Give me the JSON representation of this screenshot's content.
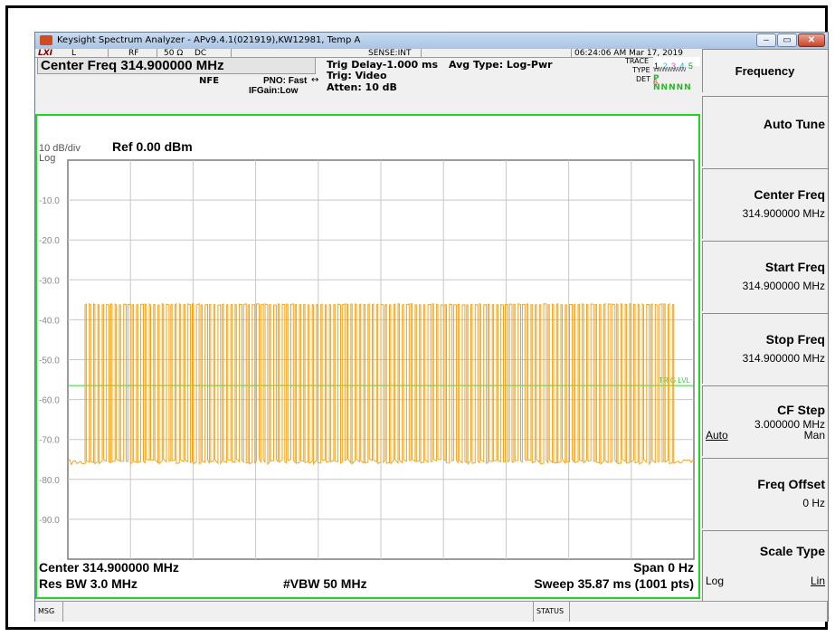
{
  "window": {
    "title": "Keysight Spectrum Analyzer - APv9.4.1(021919),KW12981, Temp A",
    "minimize": "–",
    "restore": "▭",
    "close": "✕"
  },
  "header": {
    "mode_icon": "LXI",
    "input_l": "L",
    "rf": "RF",
    "impedance": "50 Ω",
    "coupling": "DC",
    "sense": "SENSE:INT",
    "datetime": "06:24:06 AM Mar 17, 2019",
    "center_freq": "Center Freq 314.900000 MHz",
    "nfe": "NFE",
    "pno": "PNO: Fast",
    "ifgain": "IFGain:Low",
    "trig_delay": "Trig Delay-1.000 ms",
    "trig": "Trig: Video",
    "atten": "Atten: 10 dB",
    "avg_type": "Avg Type: Log-Pwr",
    "trace_label": "TRACE",
    "trace_nums": [
      "1",
      "2",
      "3",
      "4",
      "5",
      "6"
    ],
    "trace_colors": [
      "#e8a000",
      "#27c1e6",
      "#e040e0",
      "#22a0d0",
      "#2a8c2a",
      "#cc2222"
    ],
    "type_label": "TYPE",
    "type_value": "WWWWWW",
    "det_label": "DET",
    "det_value": "P NNNNN"
  },
  "graph": {
    "scale": "10 dB/div",
    "ref": "Ref 0.00 dBm",
    "log": "Log",
    "y_ticks": [
      "-10.0",
      "-20.0",
      "-30.0",
      "-40.0",
      "-50.0",
      "-60.0",
      "-70.0",
      "-80.0",
      "-90.0"
    ],
    "trig_lvl": "TRIG LVL",
    "center": "Center 314.900000 MHz",
    "span": "Span 0 Hz",
    "rbw": "Res BW 3.0 MHz",
    "vbw": "#VBW 50 MHz",
    "sweep": "Sweep  35.87 ms (1001 pts)",
    "trace_color": "#f2a51a",
    "trig_color": "#33d433"
  },
  "softkeys": {
    "menu_title": "Frequency",
    "auto_tune": "Auto Tune",
    "center_freq_label": "Center Freq",
    "center_freq_value": "314.900000 MHz",
    "start_freq_label": "Start Freq",
    "start_freq_value": "314.900000 MHz",
    "stop_freq_label": "Stop Freq",
    "stop_freq_value": "314.900000 MHz",
    "cf_step_label": "CF Step",
    "cf_step_value": "3.000000 MHz",
    "cf_step_auto": "Auto",
    "cf_step_man": "Man",
    "freq_offset_label": "Freq Offset",
    "freq_offset_value": "0 Hz",
    "scale_type_label": "Scale Type",
    "scale_type_log": "Log",
    "scale_type_lin": "Lin"
  },
  "status": {
    "msg": "MSG",
    "status": "STATUS"
  },
  "chart_data": {
    "type": "line",
    "title": "",
    "xlabel": "",
    "ylabel": "",
    "ylim": [
      -100,
      0
    ],
    "grid": true,
    "trig_level_dbm": -56.5,
    "pulse_high_dbm": -36,
    "noise_floor_dbm": -75.5,
    "pulse_count": 138
  }
}
